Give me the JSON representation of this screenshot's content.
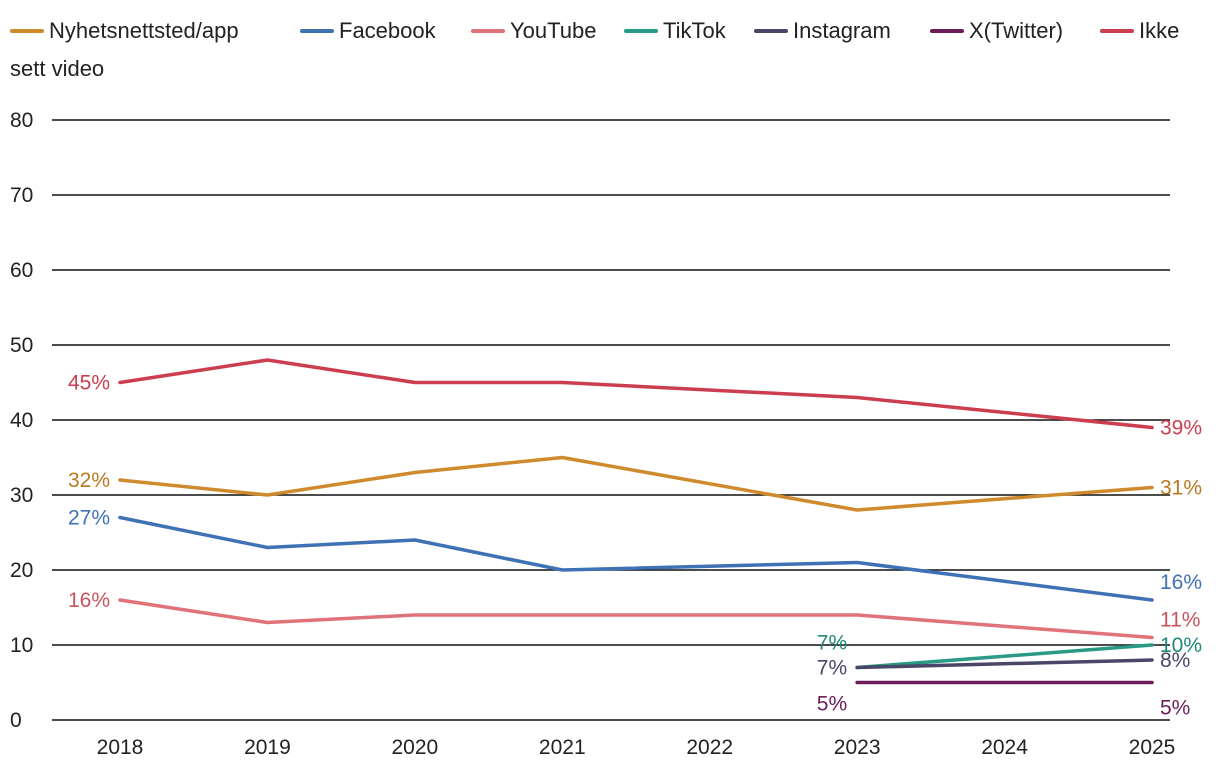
{
  "chart_data": {
    "type": "line",
    "title": "",
    "xlabel": "",
    "ylabel": "",
    "ylim": [
      0,
      80
    ],
    "yticks": [
      0,
      10,
      20,
      30,
      40,
      50,
      60,
      70,
      80
    ],
    "grid": true,
    "legend_position": "top",
    "categories": [
      "2018",
      "2019",
      "2020",
      "2021",
      "2022",
      "2023",
      "2024",
      "2025"
    ],
    "series": [
      {
        "name": "Nyhetsnettsted/app",
        "color": "#d08a2e",
        "label_color": "#b8781e",
        "points": [
          [
            2018,
            32
          ],
          [
            2019,
            30
          ],
          [
            2020,
            33
          ],
          [
            2021,
            35
          ],
          [
            2023,
            28
          ],
          [
            2025,
            31
          ]
        ],
        "labels": [
          {
            "year": 2018,
            "value": 32,
            "text": "32%",
            "side": "left"
          },
          {
            "year": 2025,
            "value": 31,
            "text": "31%",
            "side": "right"
          }
        ]
      },
      {
        "name": "Facebook",
        "color": "#3f72b5",
        "label_color": "#3f72b5",
        "points": [
          [
            2018,
            27
          ],
          [
            2019,
            23
          ],
          [
            2020,
            24
          ],
          [
            2021,
            20
          ],
          [
            2023,
            21
          ],
          [
            2025,
            16
          ]
        ],
        "labels": [
          {
            "year": 2018,
            "value": 27,
            "text": "27%",
            "side": "left"
          },
          {
            "year": 2025,
            "value": 16,
            "text": "16%",
            "side": "right-above"
          }
        ]
      },
      {
        "name": "YouTube",
        "color": "#e0737a",
        "label_color": "#c8545c",
        "points": [
          [
            2018,
            16
          ],
          [
            2019,
            13
          ],
          [
            2020,
            14
          ],
          [
            2021,
            14
          ],
          [
            2023,
            14
          ],
          [
            2025,
            11
          ]
        ],
        "labels": [
          {
            "year": 2018,
            "value": 16,
            "text": "16%",
            "side": "left"
          },
          {
            "year": 2025,
            "value": 11,
            "text": "11%",
            "side": "right-above"
          }
        ]
      },
      {
        "name": "TikTok",
        "color": "#2a9a86",
        "label_color": "#1f8a76",
        "points": [
          [
            2023,
            7
          ],
          [
            2025,
            10
          ]
        ],
        "labels": [
          {
            "year": 2023,
            "value": 7,
            "text": "7%",
            "side": "left-above"
          },
          {
            "year": 2025,
            "value": 10,
            "text": "10%",
            "side": "right"
          }
        ]
      },
      {
        "name": "Instagram",
        "color": "#4a4668",
        "label_color": "#4a4668",
        "points": [
          [
            2023,
            7
          ],
          [
            2025,
            8
          ]
        ],
        "labels": [
          {
            "year": 2023,
            "value": 7,
            "text": "7%",
            "side": "left"
          },
          {
            "year": 2025,
            "value": 8,
            "text": "8%",
            "side": "right"
          }
        ]
      },
      {
        "name": "X(Twitter)",
        "color": "#6b1d5a",
        "label_color": "#6b1d5a",
        "points": [
          [
            2023,
            5
          ],
          [
            2025,
            5
          ]
        ],
        "labels": [
          {
            "year": 2023,
            "value": 5,
            "text": "5%",
            "side": "left-below"
          },
          {
            "year": 2025,
            "value": 5,
            "text": "5%",
            "side": "right-below"
          }
        ]
      },
      {
        "name": "Ikke sett video",
        "color": "#cc3d4f",
        "label_color": "#cc3d4f",
        "points": [
          [
            2018,
            45
          ],
          [
            2019,
            48
          ],
          [
            2020,
            45
          ],
          [
            2021,
            45
          ],
          [
            2023,
            43
          ],
          [
            2025,
            39
          ]
        ],
        "labels": [
          {
            "year": 2018,
            "value": 45,
            "text": "45%",
            "side": "left"
          },
          {
            "year": 2025,
            "value": 39,
            "text": "39%",
            "side": "right"
          }
        ]
      }
    ]
  },
  "legend": {
    "line1": [
      "Nyhetsnettsted/app",
      "Facebook",
      "YouTube",
      "TikTok",
      "Instagram",
      "X(Twitter)",
      "Ikke"
    ],
    "line2": "sett video"
  }
}
